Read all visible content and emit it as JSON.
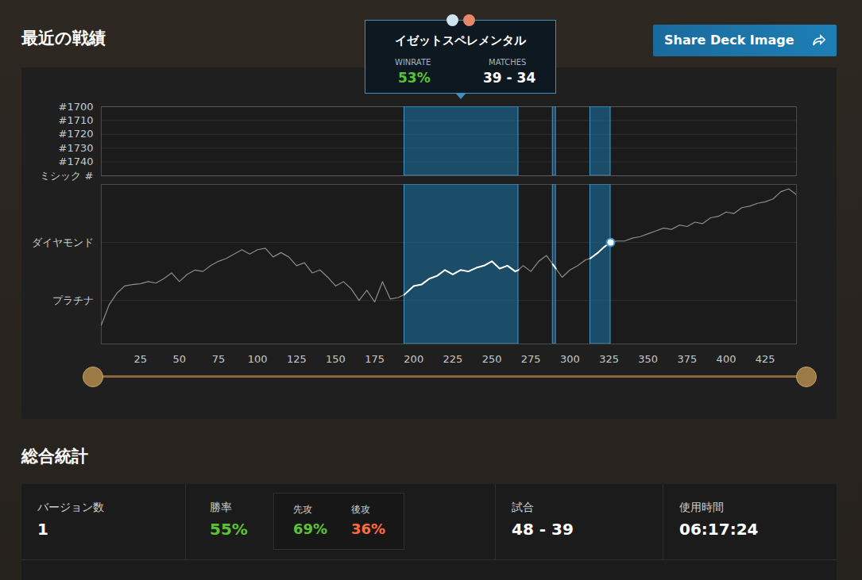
{
  "section_title": "最近の戦績",
  "share_button": "Share Deck Image",
  "tooltip": {
    "title": "イゼットスペレメンタル",
    "winrate_label": "WINRATE",
    "winrate": "53%",
    "matches_label": "MATCHES",
    "matches": "39 - 34"
  },
  "chart_data": [
    {
      "type": "line",
      "xlim": [
        0,
        445
      ],
      "ylim": [
        1750,
        1700
      ],
      "yticks": [
        {
          "value": 1700,
          "label": "#1700"
        },
        {
          "value": 1710,
          "label": "#1710"
        },
        {
          "value": 1720,
          "label": "#1720"
        },
        {
          "value": 1730,
          "label": "#1730"
        },
        {
          "value": 1740,
          "label": "#1740"
        },
        {
          "value": 1750,
          "label": "ミシック #"
        }
      ],
      "grid": true,
      "tick_labels": "y",
      "x": [],
      "series": [],
      "highlight_ranges": [
        [
          194,
          267
        ],
        [
          289,
          291
        ],
        [
          313,
          326
        ]
      ]
    },
    {
      "type": "line",
      "xlim": [
        0,
        445
      ],
      "xticks": [
        25,
        50,
        75,
        100,
        125,
        150,
        175,
        200,
        225,
        250,
        275,
        300,
        325,
        350,
        375,
        400,
        425
      ],
      "ylim": [
        -3,
        8
      ],
      "yticks": [
        {
          "value": 0,
          "label": "プラチナ"
        },
        {
          "value": 4,
          "label": "ダイヤモンド"
        }
      ],
      "grid": true,
      "x": [
        0,
        5,
        10,
        15,
        20,
        25,
        30,
        35,
        40,
        45,
        50,
        55,
        60,
        65,
        70,
        75,
        80,
        85,
        90,
        95,
        100,
        105,
        110,
        115,
        120,
        125,
        130,
        135,
        140,
        145,
        150,
        155,
        160,
        165,
        170,
        175,
        180,
        185,
        190,
        194,
        200,
        205,
        210,
        215,
        220,
        225,
        230,
        235,
        240,
        245,
        250,
        255,
        260,
        265,
        267,
        270,
        275,
        280,
        285,
        289,
        291,
        295,
        300,
        305,
        310,
        313,
        318,
        322,
        326,
        330,
        335,
        340,
        345,
        350,
        355,
        360,
        365,
        370,
        375,
        380,
        385,
        390,
        395,
        400,
        405,
        410,
        415,
        420,
        425,
        430,
        435,
        440,
        445
      ],
      "series": [
        {
          "color": "#8c8c8c",
          "values": [
            -1.7,
            -0.3,
            0.5,
            1.0,
            1.1,
            1.15,
            1.3,
            1.2,
            1.5,
            1.9,
            1.3,
            1.8,
            2.1,
            2.0,
            2.4,
            2.7,
            2.9,
            3.2,
            3.5,
            3.2,
            3.5,
            3.6,
            3.0,
            3.3,
            3.0,
            2.4,
            2.6,
            1.9,
            2.1,
            1.6,
            1.0,
            1.3,
            0.8,
            0.0,
            0.7,
            -0.1,
            1.3,
            0.1,
            0.2,
            0.4,
            1.0,
            1.1,
            1.5,
            1.7,
            2.1,
            1.8,
            2.1,
            2.0,
            2.25,
            2.4,
            2.7,
            2.2,
            2.4,
            2.0,
            2.1,
            2.4,
            2.0,
            2.7,
            3.1,
            2.5,
            2.2,
            1.6,
            2.1,
            2.4,
            2.8,
            2.9,
            3.3,
            3.7,
            4.0,
            4.1,
            4.1,
            4.3,
            4.4,
            4.6,
            4.8,
            5.0,
            4.9,
            5.2,
            5.1,
            5.4,
            5.3,
            5.7,
            5.8,
            6.1,
            6.0,
            6.4,
            6.5,
            6.7,
            6.8,
            7.0,
            7.5,
            7.7,
            7.3
          ]
        },
        {
          "name": "イゼットスペレメンタル",
          "color": "#ffffff",
          "values": [
            null,
            null,
            null,
            null,
            null,
            null,
            null,
            null,
            null,
            null,
            null,
            null,
            null,
            null,
            null,
            null,
            null,
            null,
            null,
            null,
            null,
            null,
            null,
            null,
            null,
            null,
            null,
            null,
            null,
            null,
            null,
            null,
            null,
            null,
            null,
            null,
            null,
            null,
            null,
            0.4,
            1.0,
            1.1,
            1.5,
            1.7,
            2.1,
            1.8,
            2.1,
            2.0,
            2.25,
            2.4,
            2.7,
            2.2,
            2.4,
            2.0,
            2.1,
            null,
            null,
            null,
            null,
            2.5,
            2.2,
            null,
            null,
            null,
            null,
            2.9,
            3.3,
            3.7,
            4.0,
            null,
            null,
            null,
            null,
            null,
            null,
            null,
            null,
            null,
            null,
            null,
            null,
            null,
            null,
            null,
            null,
            null,
            null,
            null,
            null,
            null,
            null,
            null,
            null
          ]
        }
      ],
      "highlight_ranges": [
        [
          194,
          267
        ],
        [
          289,
          291
        ],
        [
          313,
          326
        ]
      ],
      "current_point": {
        "x": 326,
        "value": 4.0
      }
    }
  ],
  "stats_title": "総合統計",
  "stats": [
    {
      "label": "バージョン数",
      "value": "1"
    },
    {
      "label": "勝率",
      "value": "55%",
      "color": "#5bc236",
      "sub": [
        {
          "label": "先攻",
          "value": "69%",
          "color": "#5bc236"
        },
        {
          "label": "後攻",
          "value": "36%",
          "color": "#ff6b3d"
        }
      ]
    },
    {
      "label": "試合",
      "value": "48 - 39"
    },
    {
      "label": "使用時間",
      "value": "06:17:24"
    }
  ]
}
